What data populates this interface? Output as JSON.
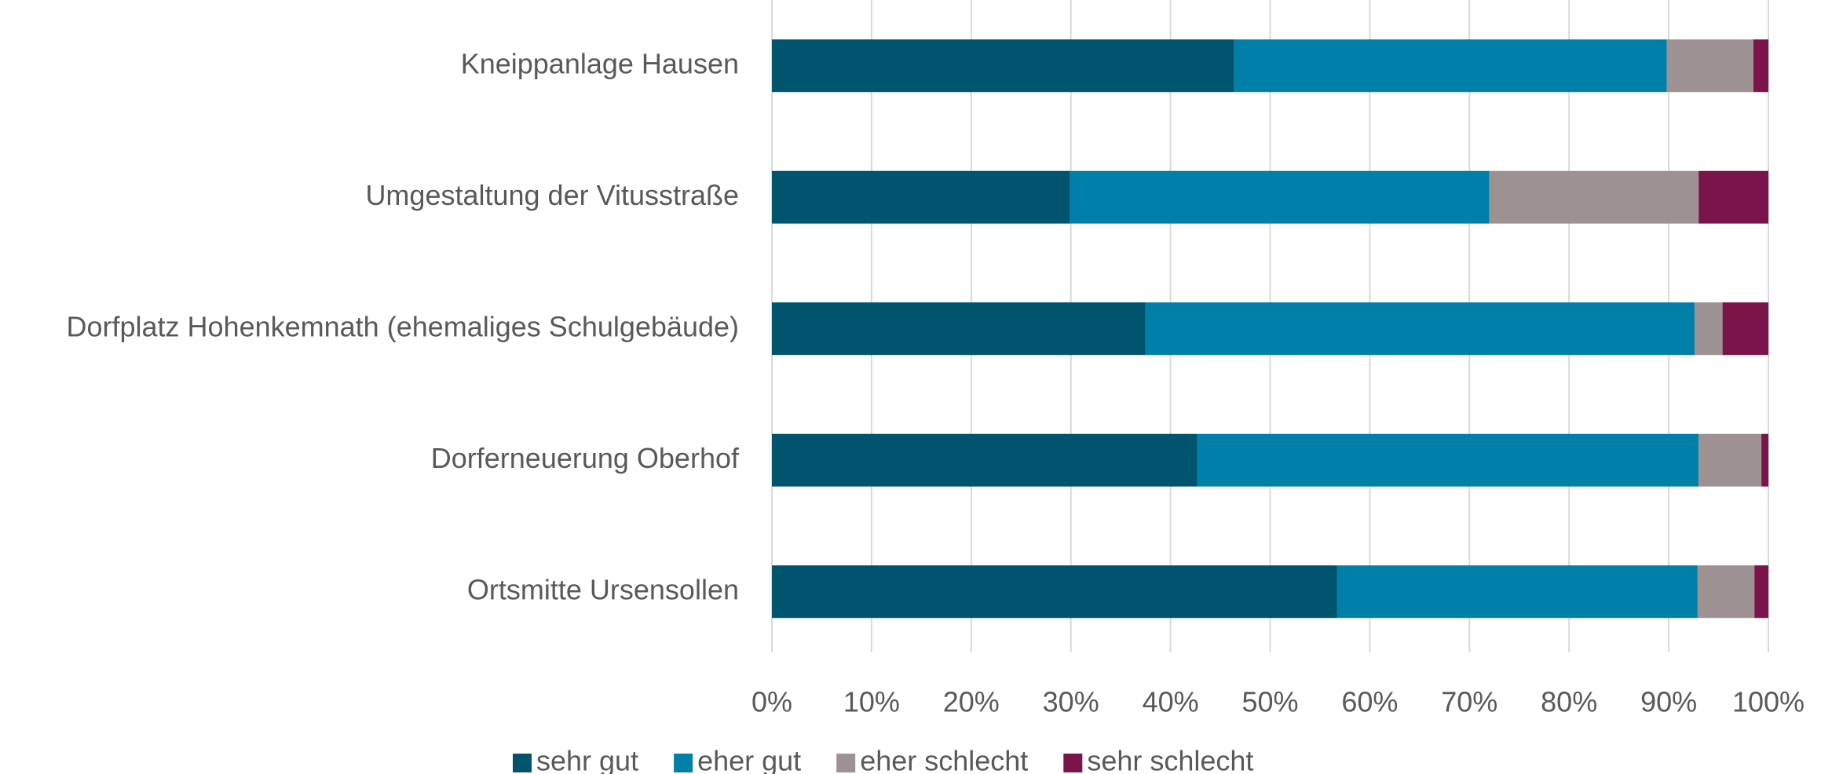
{
  "chart_data": {
    "type": "stacked_barh",
    "categories": [
      "Kneippanlage Hausen",
      "Umgestaltung der Vitusstraße",
      "Dorfplatz Hohenkemnath (ehemaliges Schulgebäude)",
      "Dorferneuerung Oberhof",
      "Ortsmitte Ursensollen"
    ],
    "series": [
      {
        "name": "sehr gut",
        "color": "#00546e",
        "values": [
          46.4,
          29.9,
          37.5,
          42.7,
          56.7
        ]
      },
      {
        "name": "eher gut",
        "color": "#0080a8",
        "values": [
          43.4,
          42.1,
          55.1,
          50.3,
          36.2
        ]
      },
      {
        "name": "eher schlecht",
        "color": "#9e9193",
        "values": [
          8.7,
          21.0,
          2.8,
          6.3,
          5.7
        ]
      },
      {
        "name": "sehr schlecht",
        "color": "#7b1449",
        "values": [
          1.5,
          7.0,
          4.6,
          0.7,
          1.4
        ]
      }
    ],
    "xlim": [
      0,
      100
    ],
    "xticks": [
      {
        "value": 0,
        "label": "0%"
      },
      {
        "value": 10,
        "label": "10%"
      },
      {
        "value": 20,
        "label": "20%"
      },
      {
        "value": 30,
        "label": "30%"
      },
      {
        "value": 40,
        "label": "40%"
      },
      {
        "value": 50,
        "label": "50%"
      },
      {
        "value": 60,
        "label": "60%"
      },
      {
        "value": 70,
        "label": "70%"
      },
      {
        "value": 80,
        "label": "80%"
      },
      {
        "value": 90,
        "label": "90%"
      },
      {
        "value": 100,
        "label": "100%"
      }
    ],
    "grid": true,
    "legend": "bottom"
  }
}
